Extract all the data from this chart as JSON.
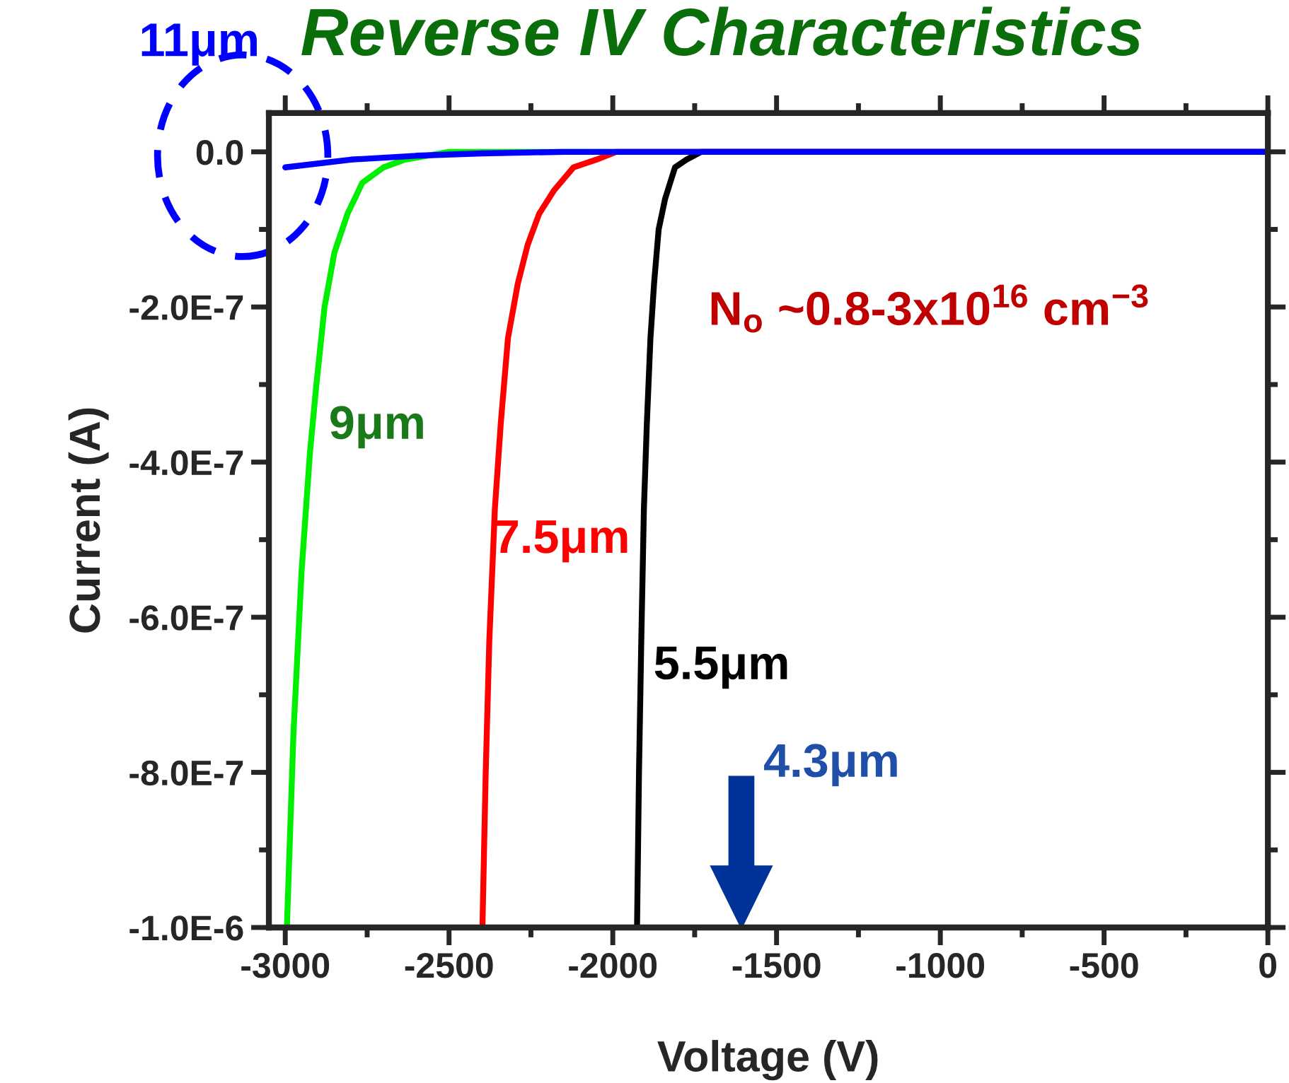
{
  "chart_data": {
    "type": "line",
    "title": "Reverse IV Characteristics",
    "xlabel": "Voltage (V)",
    "ylabel": "Current (A)",
    "xlim": [
      -3050,
      0
    ],
    "xticks": [
      -3000,
      -2500,
      -2000,
      -1500,
      -1000,
      -500,
      0
    ],
    "ylim": [
      -1e-06,
      5e-08
    ],
    "yticks": [
      {
        "value": 0,
        "label": "0.0"
      },
      {
        "value": -2e-07,
        "label": "-2.0E-7"
      },
      {
        "value": -4e-07,
        "label": "-4.0E-7"
      },
      {
        "value": -6e-07,
        "label": "-6.0E-7"
      },
      {
        "value": -8e-07,
        "label": "-8.0E-7"
      },
      {
        "value": -1e-06,
        "label": "-1.0E-6"
      }
    ],
    "grid": false,
    "legend": false,
    "line_style": "solid",
    "marker": "none",
    "series": [
      {
        "name": "9μm",
        "color": "#00ee00",
        "x": [
          -2995,
          -2975,
          -2950,
          -2925,
          -2905,
          -2880,
          -2850,
          -2810,
          -2765,
          -2700,
          -2635,
          -2500,
          -2420,
          0
        ],
        "values": [
          -1e-06,
          -7.5e-07,
          -5.4e-07,
          -3.9e-07,
          -3e-07,
          -2e-07,
          -1.3e-07,
          -8e-08,
          -4e-08,
          -2e-08,
          -1e-08,
          0,
          0,
          0
        ]
      },
      {
        "name": "7.5μm",
        "color": "#ff0000",
        "x": [
          -2398,
          -2388,
          -2377,
          -2360,
          -2342,
          -2320,
          -2290,
          -2260,
          -2225,
          -2180,
          -2120,
          -2050,
          -1990,
          0
        ],
        "values": [
          -1e-06,
          -8e-07,
          -6.3e-07,
          -4.6e-07,
          -3.5e-07,
          -2.4e-07,
          -1.7e-07,
          -1.2e-07,
          -8e-08,
          -5e-08,
          -2e-08,
          -1e-08,
          0,
          0
        ]
      },
      {
        "name": "5.5μm",
        "color": "#000000",
        "x": [
          -1926,
          -1920,
          -1913,
          -1905,
          -1896,
          -1885,
          -1874,
          -1860,
          -1840,
          -1810,
          -1775,
          -1730,
          -1689,
          0
        ],
        "values": [
          -1e-06,
          -8e-07,
          -6.3e-07,
          -4.6e-07,
          -3.5e-07,
          -2.4e-07,
          -1.7e-07,
          -1e-07,
          -6e-08,
          -2e-08,
          -1e-08,
          0,
          0,
          0
        ]
      },
      {
        "name": "11μm",
        "color": "#0000ff",
        "x": [
          -3000,
          -2800,
          -2600,
          -2400,
          -2150,
          0
        ],
        "values": [
          -2e-08,
          -1e-08,
          -5e-09,
          -2e-09,
          0,
          0
        ]
      }
    ],
    "annotations": [
      "N$_{o}$ ~0.8-3x10$^{16}$ cm$^{−3}$",
      "4.3μm"
    ]
  }
}
